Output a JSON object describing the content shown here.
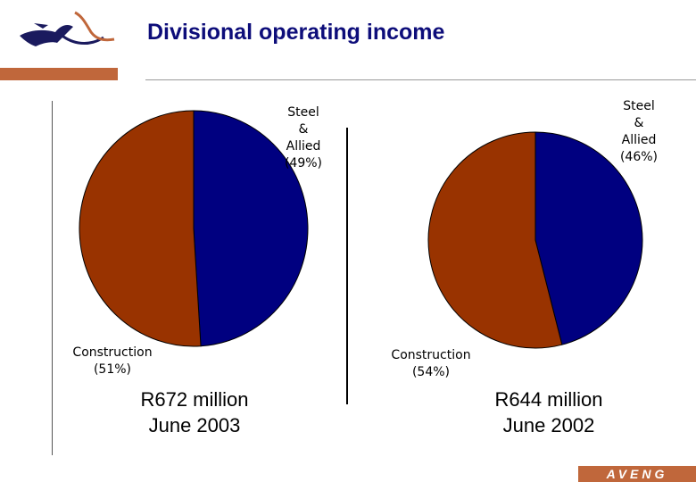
{
  "header": {
    "title": "Divisional operating income",
    "logo_icon": "aveng-horse-logo-icon",
    "accent_color": "#c0673b",
    "title_color": "#0d0d7a"
  },
  "footer": {
    "brand": "AVENG"
  },
  "chart_data": [
    {
      "type": "pie",
      "slices": [
        {
          "label_lines": [
            "Steel",
            "&",
            "Allied",
            "(49%)"
          ],
          "value": 49,
          "color": "#000080"
        },
        {
          "label_lines": [
            "Construction",
            "(51%)"
          ],
          "value": 51,
          "color": "#993300"
        }
      ],
      "caption": [
        "R672 million",
        "June 2003"
      ]
    },
    {
      "type": "pie",
      "slices": [
        {
          "label_lines": [
            "Steel",
            "&",
            "Allied",
            "(46%)"
          ],
          "value": 46,
          "color": "#000080"
        },
        {
          "label_lines": [
            "Construction",
            "(54%)"
          ],
          "value": 54,
          "color": "#993300"
        }
      ],
      "caption": [
        "R644 million",
        "June 2002"
      ]
    }
  ]
}
